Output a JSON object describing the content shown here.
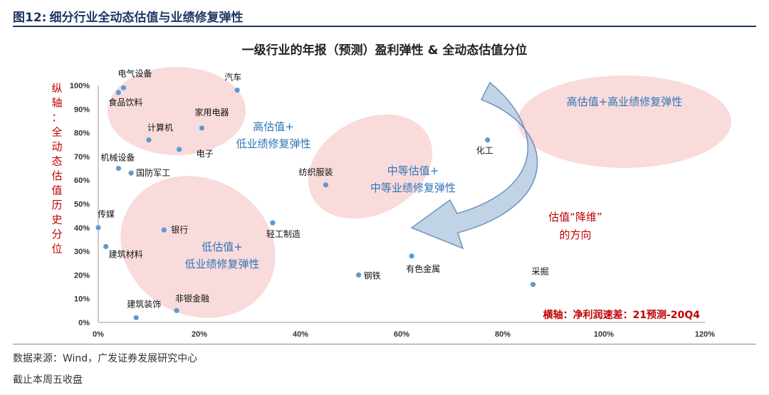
{
  "figure": {
    "number": "图12:",
    "title": "细分行业全动态估值与业绩修复弹性",
    "source": "数据来源：Wind，广发证券发展研究中心",
    "note": "截止本周五收盘"
  },
  "chart_data": {
    "type": "scatter",
    "title": "一级行业的年报（预测）盈利弹性 & 全动态估值分位",
    "xlabel": "横轴：净利润速差：21预测-20Q4",
    "ylabel": "纵轴：全动态估值历史分位",
    "xlim": [
      0,
      120
    ],
    "ylim": [
      0,
      100
    ],
    "x_ticks": [
      "0%",
      "20%",
      "40%",
      "60%",
      "80%",
      "100%",
      "120%"
    ],
    "y_ticks": [
      "0%",
      "10%",
      "20%",
      "30%",
      "40%",
      "50%",
      "60%",
      "70%",
      "80%",
      "90%",
      "100%"
    ],
    "points": [
      {
        "label": "电气设备",
        "x": 5,
        "y": 99
      },
      {
        "label": "食品饮料",
        "x": 4,
        "y": 97
      },
      {
        "label": "汽车",
        "x": 27.5,
        "y": 98
      },
      {
        "label": "家用电器",
        "x": 20.5,
        "y": 82
      },
      {
        "label": "计算机",
        "x": 10,
        "y": 77
      },
      {
        "label": "电子",
        "x": 16,
        "y": 73
      },
      {
        "label": "机械设备",
        "x": 4,
        "y": 65
      },
      {
        "label": "国防军工",
        "x": 6.5,
        "y": 63
      },
      {
        "label": "传媒",
        "x": 0,
        "y": 40
      },
      {
        "label": "建筑材料",
        "x": 1.5,
        "y": 32
      },
      {
        "label": "银行",
        "x": 13,
        "y": 39
      },
      {
        "label": "轻工制造",
        "x": 34.5,
        "y": 42
      },
      {
        "label": "纺织服装",
        "x": 45,
        "y": 58
      },
      {
        "label": "化工",
        "x": 77,
        "y": 77
      },
      {
        "label": "钢铁",
        "x": 51.5,
        "y": 20
      },
      {
        "label": "有色金属",
        "x": 62,
        "y": 28
      },
      {
        "label": "采掘",
        "x": 86,
        "y": 16
      },
      {
        "label": "建筑装饰",
        "x": 7.5,
        "y": 2
      },
      {
        "label": "非银金融",
        "x": 15.5,
        "y": 5
      }
    ],
    "annotations": {
      "high_low": [
        "高估值+",
        "低业绩修复弹性"
      ],
      "mid_mid": [
        "中等估值+",
        "中等业绩修复弹性"
      ],
      "low_low": [
        "低估值+",
        "低业绩修复弹性"
      ],
      "high_high": [
        "高估值+高业绩修复弹性"
      ],
      "direction": [
        "估值“降维”",
        "的方向"
      ]
    },
    "colors": {
      "point": "#5b9bd5",
      "ellipse": "#f8d7d7",
      "arrow": "#b9cde3",
      "annotation_blue": "#2e75b6",
      "annotation_red": "#c00000"
    }
  }
}
